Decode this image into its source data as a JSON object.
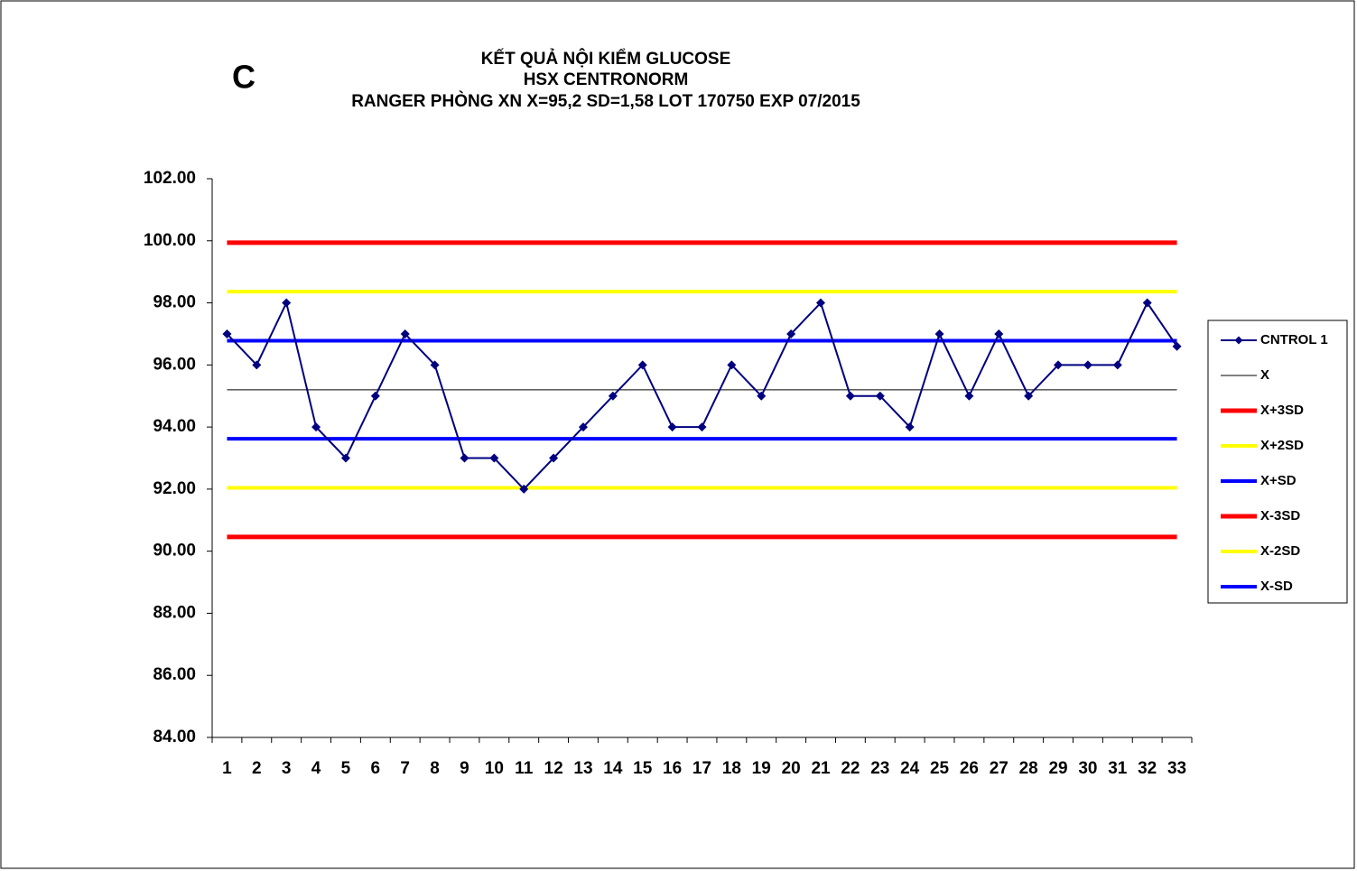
{
  "chart_data": {
    "type": "line",
    "panel_label": "C",
    "title": "KẾT QUẢ NỘI KIỂM GLUCOSE",
    "subtitle": [
      "HSX CENTRONORM",
      "RANGER PHÒNG XN X=95,2 SD=1,58 LOT 170750 EXP 07/2015"
    ],
    "categories": [
      "1",
      "2",
      "3",
      "4",
      "5",
      "6",
      "7",
      "8",
      "9",
      "10",
      "11",
      "12",
      "13",
      "14",
      "15",
      "16",
      "17",
      "18",
      "19",
      "20",
      "21",
      "22",
      "23",
      "24",
      "25",
      "26",
      "27",
      "28",
      "29",
      "30",
      "31",
      "32",
      "33"
    ],
    "ylim": [
      84,
      102
    ],
    "yticks": [
      {
        "value": 84,
        "label": "84.00"
      },
      {
        "value": 86,
        "label": "86.00"
      },
      {
        "value": 88,
        "label": "88.00"
      },
      {
        "value": 90,
        "label": "90.00"
      },
      {
        "value": 92,
        "label": "92.00"
      },
      {
        "value": 94,
        "label": "94.00"
      },
      {
        "value": 96,
        "label": "96.00"
      },
      {
        "value": 98,
        "label": "98.00"
      },
      {
        "value": 100,
        "label": "100.00"
      },
      {
        "value": 102,
        "label": "102.00"
      }
    ],
    "legend": "right",
    "series": [
      {
        "name": "CNTROL 1",
        "color": "#000080",
        "markers": true,
        "values": [
          97,
          96,
          98,
          94,
          93,
          95,
          97,
          96,
          93,
          93,
          92,
          93,
          94,
          95,
          96,
          94,
          94,
          96,
          95,
          97,
          98,
          95,
          95,
          94,
          97,
          95,
          97,
          95,
          96,
          96,
          96,
          98,
          96.6
        ]
      },
      {
        "name": "X",
        "color": "#000000",
        "values": [
          95.2,
          95.2,
          95.2,
          95.2,
          95.2,
          95.2,
          95.2,
          95.2,
          95.2,
          95.2,
          95.2,
          95.2,
          95.2,
          95.2,
          95.2,
          95.2,
          95.2,
          95.2,
          95.2,
          95.2,
          95.2,
          95.2,
          95.2,
          95.2,
          95.2,
          95.2,
          95.2,
          95.2,
          95.2,
          95.2,
          95.2,
          95.2,
          95.2
        ]
      },
      {
        "name": "X+3SD",
        "color": "#ff0000",
        "values": [
          99.94,
          99.94,
          99.94,
          99.94,
          99.94,
          99.94,
          99.94,
          99.94,
          99.94,
          99.94,
          99.94,
          99.94,
          99.94,
          99.94,
          99.94,
          99.94,
          99.94,
          99.94,
          99.94,
          99.94,
          99.94,
          99.94,
          99.94,
          99.94,
          99.94,
          99.94,
          99.94,
          99.94,
          99.94,
          99.94,
          99.94,
          99.94,
          99.94
        ]
      },
      {
        "name": "X+2SD",
        "color": "#ffff00",
        "values": [
          98.36,
          98.36,
          98.36,
          98.36,
          98.36,
          98.36,
          98.36,
          98.36,
          98.36,
          98.36,
          98.36,
          98.36,
          98.36,
          98.36,
          98.36,
          98.36,
          98.36,
          98.36,
          98.36,
          98.36,
          98.36,
          98.36,
          98.36,
          98.36,
          98.36,
          98.36,
          98.36,
          98.36,
          98.36,
          98.36,
          98.36,
          98.36,
          98.36
        ]
      },
      {
        "name": "X+SD",
        "color": "#0000ff",
        "values": [
          96.78,
          96.78,
          96.78,
          96.78,
          96.78,
          96.78,
          96.78,
          96.78,
          96.78,
          96.78,
          96.78,
          96.78,
          96.78,
          96.78,
          96.78,
          96.78,
          96.78,
          96.78,
          96.78,
          96.78,
          96.78,
          96.78,
          96.78,
          96.78,
          96.78,
          96.78,
          96.78,
          96.78,
          96.78,
          96.78,
          96.78,
          96.78,
          96.78
        ]
      },
      {
        "name": "X-3SD",
        "color": "#ff0000",
        "values": [
          90.46,
          90.46,
          90.46,
          90.46,
          90.46,
          90.46,
          90.46,
          90.46,
          90.46,
          90.46,
          90.46,
          90.46,
          90.46,
          90.46,
          90.46,
          90.46,
          90.46,
          90.46,
          90.46,
          90.46,
          90.46,
          90.46,
          90.46,
          90.46,
          90.46,
          90.46,
          90.46,
          90.46,
          90.46,
          90.46,
          90.46,
          90.46,
          90.46
        ]
      },
      {
        "name": "X-2SD",
        "color": "#ffff00",
        "values": [
          92.04,
          92.04,
          92.04,
          92.04,
          92.04,
          92.04,
          92.04,
          92.04,
          92.04,
          92.04,
          92.04,
          92.04,
          92.04,
          92.04,
          92.04,
          92.04,
          92.04,
          92.04,
          92.04,
          92.04,
          92.04,
          92.04,
          92.04,
          92.04,
          92.04,
          92.04,
          92.04,
          92.04,
          92.04,
          92.04,
          92.04,
          92.04,
          92.04
        ]
      },
      {
        "name": "X-SD",
        "color": "#0000ff",
        "values": [
          93.62,
          93.62,
          93.62,
          93.62,
          93.62,
          93.62,
          93.62,
          93.62,
          93.62,
          93.62,
          93.62,
          93.62,
          93.62,
          93.62,
          93.62,
          93.62,
          93.62,
          93.62,
          93.62,
          93.62,
          93.62,
          93.62,
          93.62,
          93.62,
          93.62,
          93.62,
          93.62,
          93.62,
          93.62,
          93.62,
          93.62,
          93.62,
          93.62
        ]
      }
    ]
  }
}
